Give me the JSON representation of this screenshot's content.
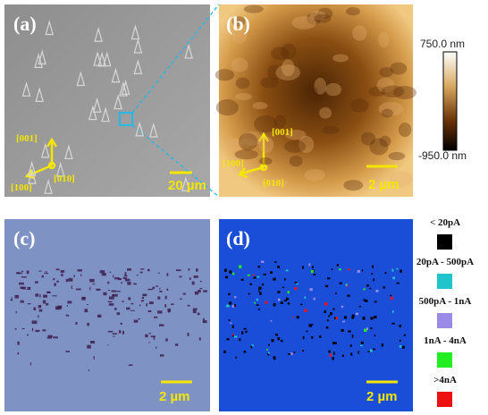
{
  "panels": [
    {
      "label": "(a)",
      "scale_bar": "20 µm",
      "directions": [
        "[001]",
        "[100]",
        "[010]"
      ]
    },
    {
      "label": "(b)",
      "scale_bar": "2 µm",
      "directions": [
        "[001]",
        "[100]",
        "[010]"
      ]
    },
    {
      "label": "(c)",
      "scale_bar": "2 µm"
    },
    {
      "label": "(d)",
      "scale_bar": "2 µm"
    }
  ],
  "colorbar": {
    "max": "750.0 nm",
    "min": "-950.0 nm"
  },
  "legend": [
    {
      "label": "< 20pA",
      "color": "#000000"
    },
    {
      "label": "20pA - 500pA",
      "color": "#22c4cc"
    },
    {
      "label": "500pA - 1nA",
      "color": "#9b8ae6"
    },
    {
      "label": "1nA  - 4nA",
      "color": "#22ee22"
    },
    {
      "label": ">4nA",
      "color": "#ee1111"
    }
  ]
}
